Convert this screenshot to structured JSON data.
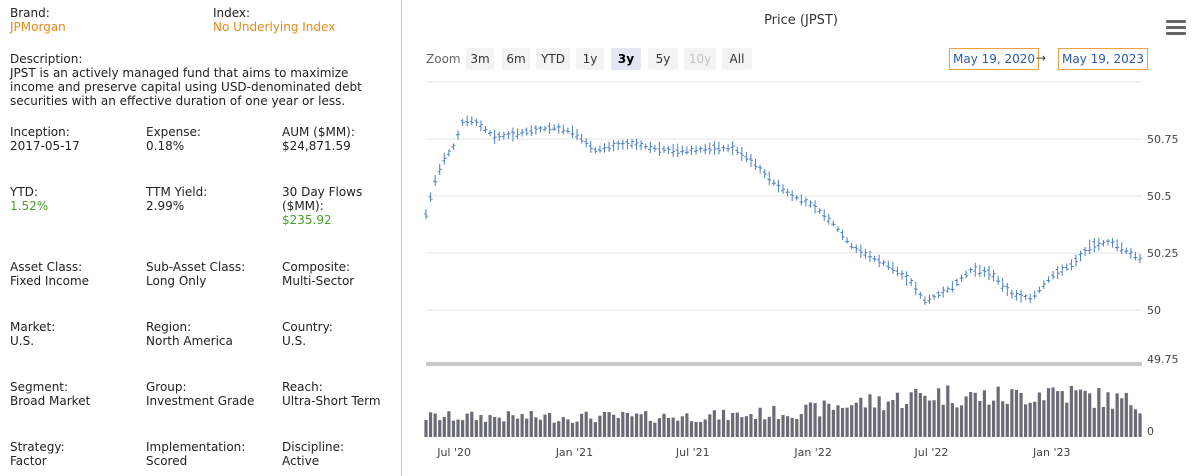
{
  "info": {
    "brand": {
      "label": "Brand:",
      "value": "JPMorgan"
    },
    "index": {
      "label": "Index:",
      "value": "No Underlying Index"
    },
    "description": {
      "label": "Description:",
      "value": "JPST is an actively managed fund that aims to maximize income and preserve capital using USD-denominated debt securities with an effective duration of one year or less."
    },
    "inception": {
      "label": "Inception:",
      "value": "2017-05-17"
    },
    "expense": {
      "label": "Expense:",
      "value": "0.18%"
    },
    "aum": {
      "label": "AUM ($MM):",
      "value": "$24,871.59"
    },
    "ytd": {
      "label": "YTD:",
      "value": "1.52%"
    },
    "ttm_yield": {
      "label": "TTM Yield:",
      "value": "2.99%"
    },
    "flows": {
      "label": "30 Day Flows ($MM):",
      "value": "$235.92"
    },
    "asset_class": {
      "label": "Asset Class:",
      "value": "Fixed Income"
    },
    "sub_asset_class": {
      "label": "Sub-Asset Class:",
      "value": "Long Only"
    },
    "composite": {
      "label": "Composite:",
      "value": "Multi-Sector"
    },
    "market": {
      "label": "Market:",
      "value": "U.S."
    },
    "region": {
      "label": "Region:",
      "value": "North America"
    },
    "country": {
      "label": "Country:",
      "value": "U.S."
    },
    "segment": {
      "label": "Segment:",
      "value": "Broad Market"
    },
    "group": {
      "label": "Group:",
      "value": "Investment Grade"
    },
    "reach": {
      "label": "Reach:",
      "value": "Ultra-Short Term"
    },
    "strategy": {
      "label": "Strategy:",
      "value": "Factor"
    },
    "implementation": {
      "label": "Implementation:",
      "value": "Scored"
    },
    "discipline": {
      "label": "Discipline:",
      "value": "Active"
    }
  },
  "colors": {
    "orange": "#e8891a",
    "green": "#4aa02c",
    "price_line": "#4a7fc1",
    "volume_bar": "#6b6b78"
  },
  "toolbar": {
    "zoom_label": "Zoom",
    "buttons": [
      "3m",
      "6m",
      "YTD",
      "1y",
      "3y",
      "5y",
      "10y",
      "All"
    ],
    "selected": "3y",
    "disabled": [
      "10y"
    ],
    "from_date": "May 19, 2020",
    "arrow": "→",
    "to_date": "May 19, 2023",
    "menu_icon": "hamburger-menu-icon"
  },
  "chart_data": {
    "type": "ohlc",
    "title": "Price (JPST)",
    "x_ticks": [
      "Jul '20",
      "Jan '21",
      "Jul '21",
      "Jan '22",
      "Jul '22",
      "Jan '23"
    ],
    "x_tick_dates": [
      "2020-07-01",
      "2021-01-01",
      "2021-07-01",
      "2022-01-01",
      "2022-07-01",
      "2023-01-01"
    ],
    "x_range": [
      "2020-05-19",
      "2023-05-19"
    ],
    "y_ticks": [
      50,
      50.25,
      50.5,
      50.75
    ],
    "y_range": [
      49.93,
      51.0
    ],
    "volume_axis_ticks": [
      0
    ],
    "volume_axis_top_label": 49.75,
    "bar_interval_days": 7,
    "price_series": {
      "name": "JPST",
      "dates": [
        "2020-05-19",
        "2020-06-01",
        "2020-06-15",
        "2020-07-01",
        "2020-07-15",
        "2020-08-01",
        "2020-09-01",
        "2020-10-01",
        "2020-11-01",
        "2020-12-01",
        "2021-01-01",
        "2021-02-01",
        "2021-03-01",
        "2021-04-01",
        "2021-05-01",
        "2021-06-01",
        "2021-07-01",
        "2021-08-01",
        "2021-09-01",
        "2021-10-01",
        "2021-11-01",
        "2021-12-01",
        "2022-01-01",
        "2022-02-01",
        "2022-03-01",
        "2022-04-01",
        "2022-05-01",
        "2022-06-01",
        "2022-06-20",
        "2022-07-01",
        "2022-08-01",
        "2022-09-01",
        "2022-10-01",
        "2022-11-01",
        "2022-12-01",
        "2023-01-01",
        "2023-02-01",
        "2023-03-01",
        "2023-04-01",
        "2023-05-19"
      ],
      "close": [
        50.42,
        50.56,
        50.66,
        50.72,
        50.83,
        50.83,
        50.76,
        50.77,
        50.79,
        50.8,
        50.78,
        50.7,
        50.72,
        50.73,
        50.71,
        50.7,
        50.7,
        50.71,
        50.71,
        50.65,
        50.56,
        50.5,
        50.46,
        50.38,
        50.28,
        50.23,
        50.19,
        50.12,
        50.04,
        50.05,
        50.1,
        50.18,
        50.16,
        50.07,
        50.05,
        50.15,
        50.2,
        50.28,
        50.3,
        50.22
      ]
    },
    "volume_series": {
      "name": "Volume",
      "dates": [
        "2020-05-19",
        "2020-09-01",
        "2021-01-01",
        "2021-05-01",
        "2021-09-01",
        "2022-01-01",
        "2022-03-01",
        "2022-05-01",
        "2022-07-01",
        "2022-09-01",
        "2022-11-01",
        "2023-01-01",
        "2023-03-01",
        "2023-05-19"
      ],
      "relative": [
        0.3,
        0.3,
        0.3,
        0.3,
        0.32,
        0.4,
        0.5,
        0.55,
        0.65,
        0.6,
        0.6,
        0.7,
        0.6,
        0.5
      ]
    }
  }
}
